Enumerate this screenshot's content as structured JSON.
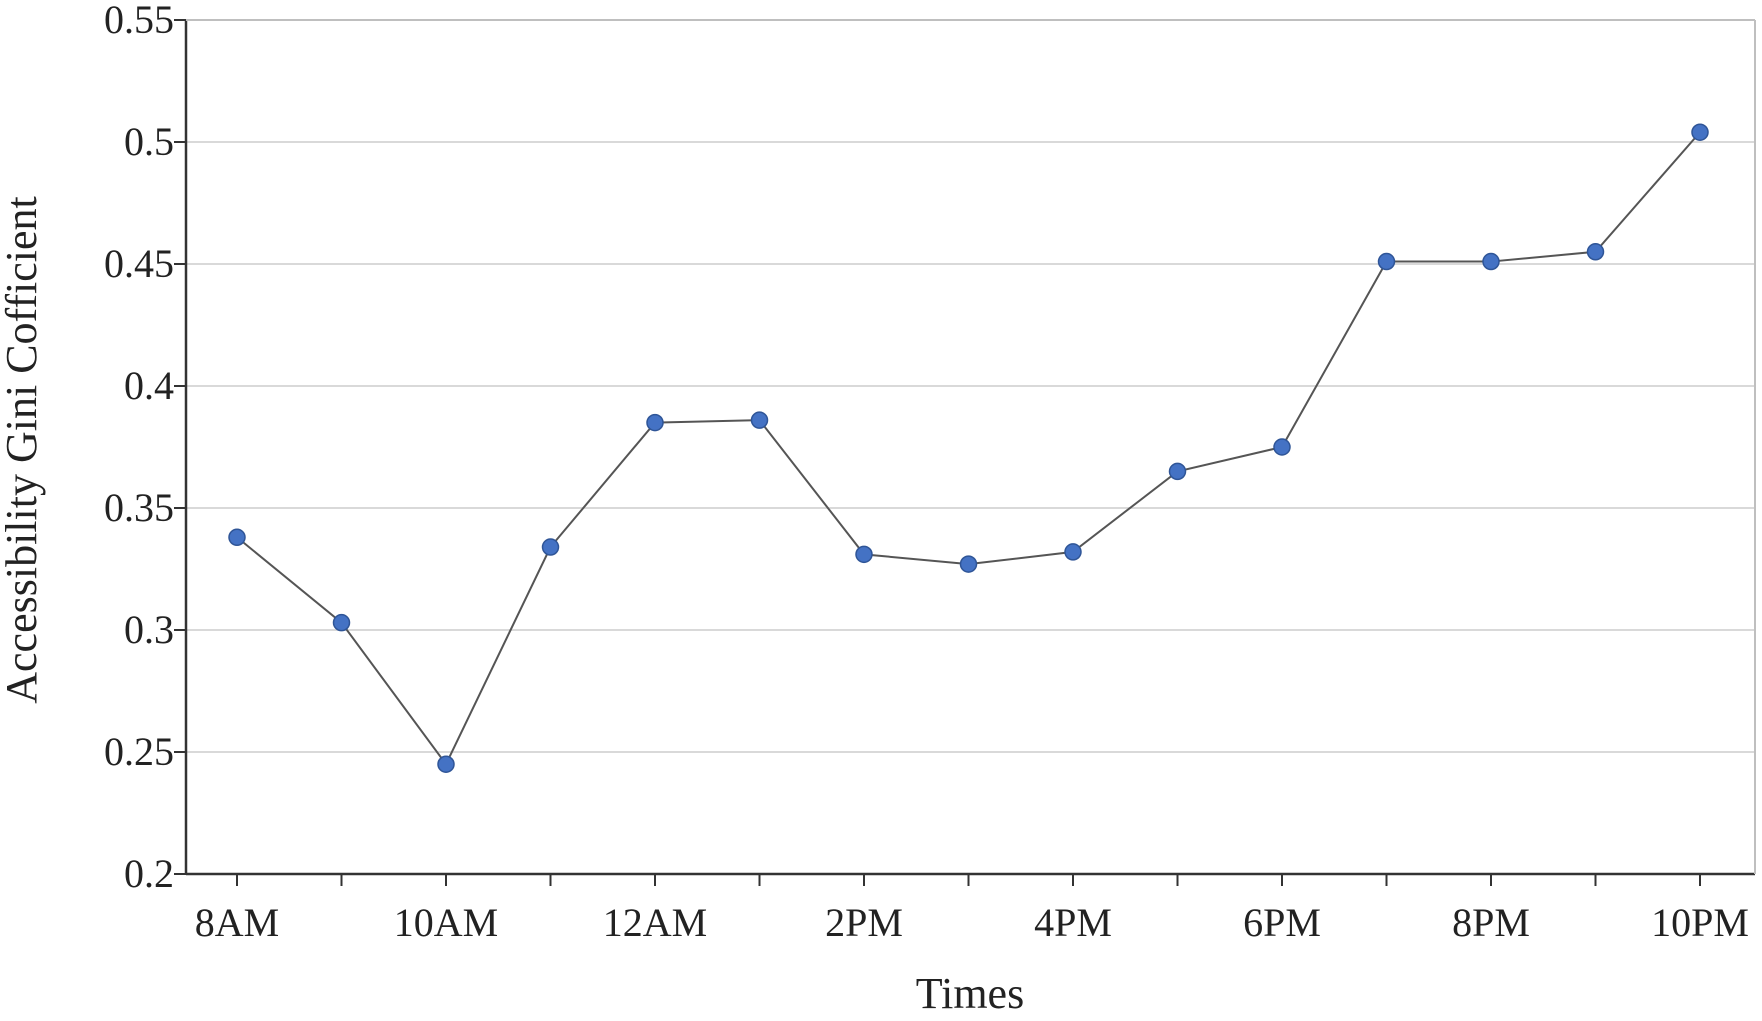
{
  "chart_data": {
    "type": "line",
    "title": "",
    "xlabel": "Times",
    "ylabel": "Accessibility Gini Cofficient",
    "categories": [
      "8AM",
      "",
      "10AM",
      "",
      "12AM",
      "",
      "2PM",
      "",
      "4PM",
      "",
      "6PM",
      "",
      "8PM",
      "",
      "10PM"
    ],
    "values": [
      0.338,
      0.303,
      0.245,
      0.334,
      0.385,
      0.386,
      0.331,
      0.327,
      0.332,
      0.365,
      0.375,
      0.451,
      0.451,
      0.455,
      0.504
    ],
    "ylim": [
      0.2,
      0.55
    ],
    "yticks": [
      "0.2",
      "0.25",
      "0.3",
      "0.35",
      "0.4",
      "0.45",
      "0.5",
      "0.55"
    ],
    "grid": "horizontal",
    "colors": {
      "line": "#555555",
      "marker": "#4472C4",
      "marker_edge": "#2F5597",
      "grid": "#D9D9D9",
      "axis": "#333333"
    }
  }
}
